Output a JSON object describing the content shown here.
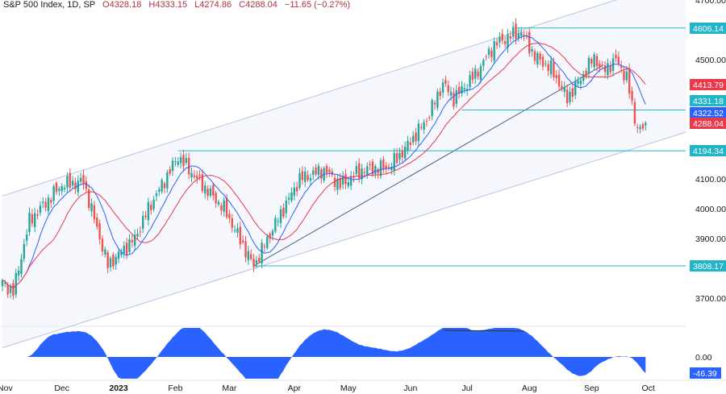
{
  "legend": {
    "symbol": "S&P 500 Index, 1D, SP",
    "open": "O4328.18",
    "high": "H4333.15",
    "low": "L4274.86",
    "close": "C4288.04",
    "change": "−11.65 (−0.27%)"
  },
  "chart_data": {
    "type": "candlestick",
    "title": "S&P 500 Index, 1D, SP",
    "ylim": [
      3640,
      4700
    ],
    "yticks": [
      "4700.00",
      "4500.00",
      "4100.00",
      "4000.00",
      "3900.00",
      "3700.00"
    ],
    "ytick_values": [
      4700,
      4500,
      4100,
      4000,
      3900,
      3700
    ],
    "xticks": [
      {
        "label": "Nov",
        "bar": 1
      },
      {
        "label": "Dec",
        "bar": 22
      },
      {
        "label": "2023",
        "bar": 43,
        "bold": true
      },
      {
        "label": "Feb",
        "bar": 64
      },
      {
        "label": "Mar",
        "bar": 84
      },
      {
        "label": "Apr",
        "bar": 108
      },
      {
        "label": "May",
        "bar": 128
      },
      {
        "label": "Jun",
        "bar": 151
      },
      {
        "label": "Jul",
        "bar": 172
      },
      {
        "label": "Aug",
        "bar": 195
      },
      {
        "label": "Sep",
        "bar": 218
      },
      {
        "label": "Oct",
        "bar": 239
      }
    ],
    "close_path": [
      [
        0,
        3750
      ],
      [
        4,
        3720
      ],
      [
        10,
        3960
      ],
      [
        22,
        4080
      ],
      [
        30,
        4090
      ],
      [
        39,
        3810
      ],
      [
        49,
        3900
      ],
      [
        54,
        4000
      ],
      [
        65,
        4175
      ],
      [
        72,
        4100
      ],
      [
        82,
        4000
      ],
      [
        90,
        3860
      ],
      [
        93,
        3808
      ],
      [
        101,
        3950
      ],
      [
        110,
        4100
      ],
      [
        119,
        4130
      ],
      [
        125,
        4080
      ],
      [
        133,
        4130
      ],
      [
        143,
        4140
      ],
      [
        149,
        4200
      ],
      [
        157,
        4300
      ],
      [
        163,
        4420
      ],
      [
        167,
        4370
      ],
      [
        175,
        4450
      ],
      [
        182,
        4550
      ],
      [
        188,
        4580
      ],
      [
        192,
        4595
      ],
      [
        197,
        4510
      ],
      [
        203,
        4470
      ],
      [
        209,
        4370
      ],
      [
        215,
        4450
      ],
      [
        219,
        4510
      ],
      [
        222,
        4460
      ],
      [
        227,
        4500
      ],
      [
        231,
        4440
      ],
      [
        234,
        4300
      ],
      [
        236,
        4260
      ],
      [
        238,
        4288
      ]
    ],
    "ma_periods": {
      "blue": 10,
      "red": 20
    },
    "price_labels": [
      {
        "value": "4606.14",
        "color": "#22b5c8"
      },
      {
        "value": "4413.79",
        "color": "#e83a4a"
      },
      {
        "value": "4331.18",
        "color": "#22b5c8"
      },
      {
        "value": "4322.52",
        "color": "#2962ff"
      },
      {
        "value": "4288.04",
        "color": "#e83a4a"
      },
      {
        "value": "4194.34",
        "color": "#22b5c8"
      },
      {
        "value": "3808.17",
        "color": "#22b5c8"
      }
    ],
    "horizontal_levels": [
      {
        "price": 4606.14,
        "from_bar": 190
      },
      {
        "price": 4331.18,
        "from_bar": 170
      },
      {
        "price": 4194.34,
        "from_bar": 65
      },
      {
        "price": 3808.17,
        "from_bar": 93
      }
    ],
    "channel": {
      "upper": [
        [
          0,
          4043
        ],
        [
          227,
          4700
        ]
      ],
      "lower": [
        [
          25,
          3605
        ],
        [
          268,
          4300
        ]
      ]
    },
    "trendline": [
      [
        93,
        3808
      ],
      [
        222,
        4480
      ]
    ],
    "oscillator": {
      "zero_label": "0.00",
      "last_label": "-46.39",
      "last_value": -46.39
    }
  },
  "colors": {
    "up": "#26a69a",
    "down": "#ef5350",
    "blue_ma": "#2962ff",
    "red_ma": "#e83a4a",
    "level": "#22b5c8",
    "osc": "#2962ff"
  }
}
